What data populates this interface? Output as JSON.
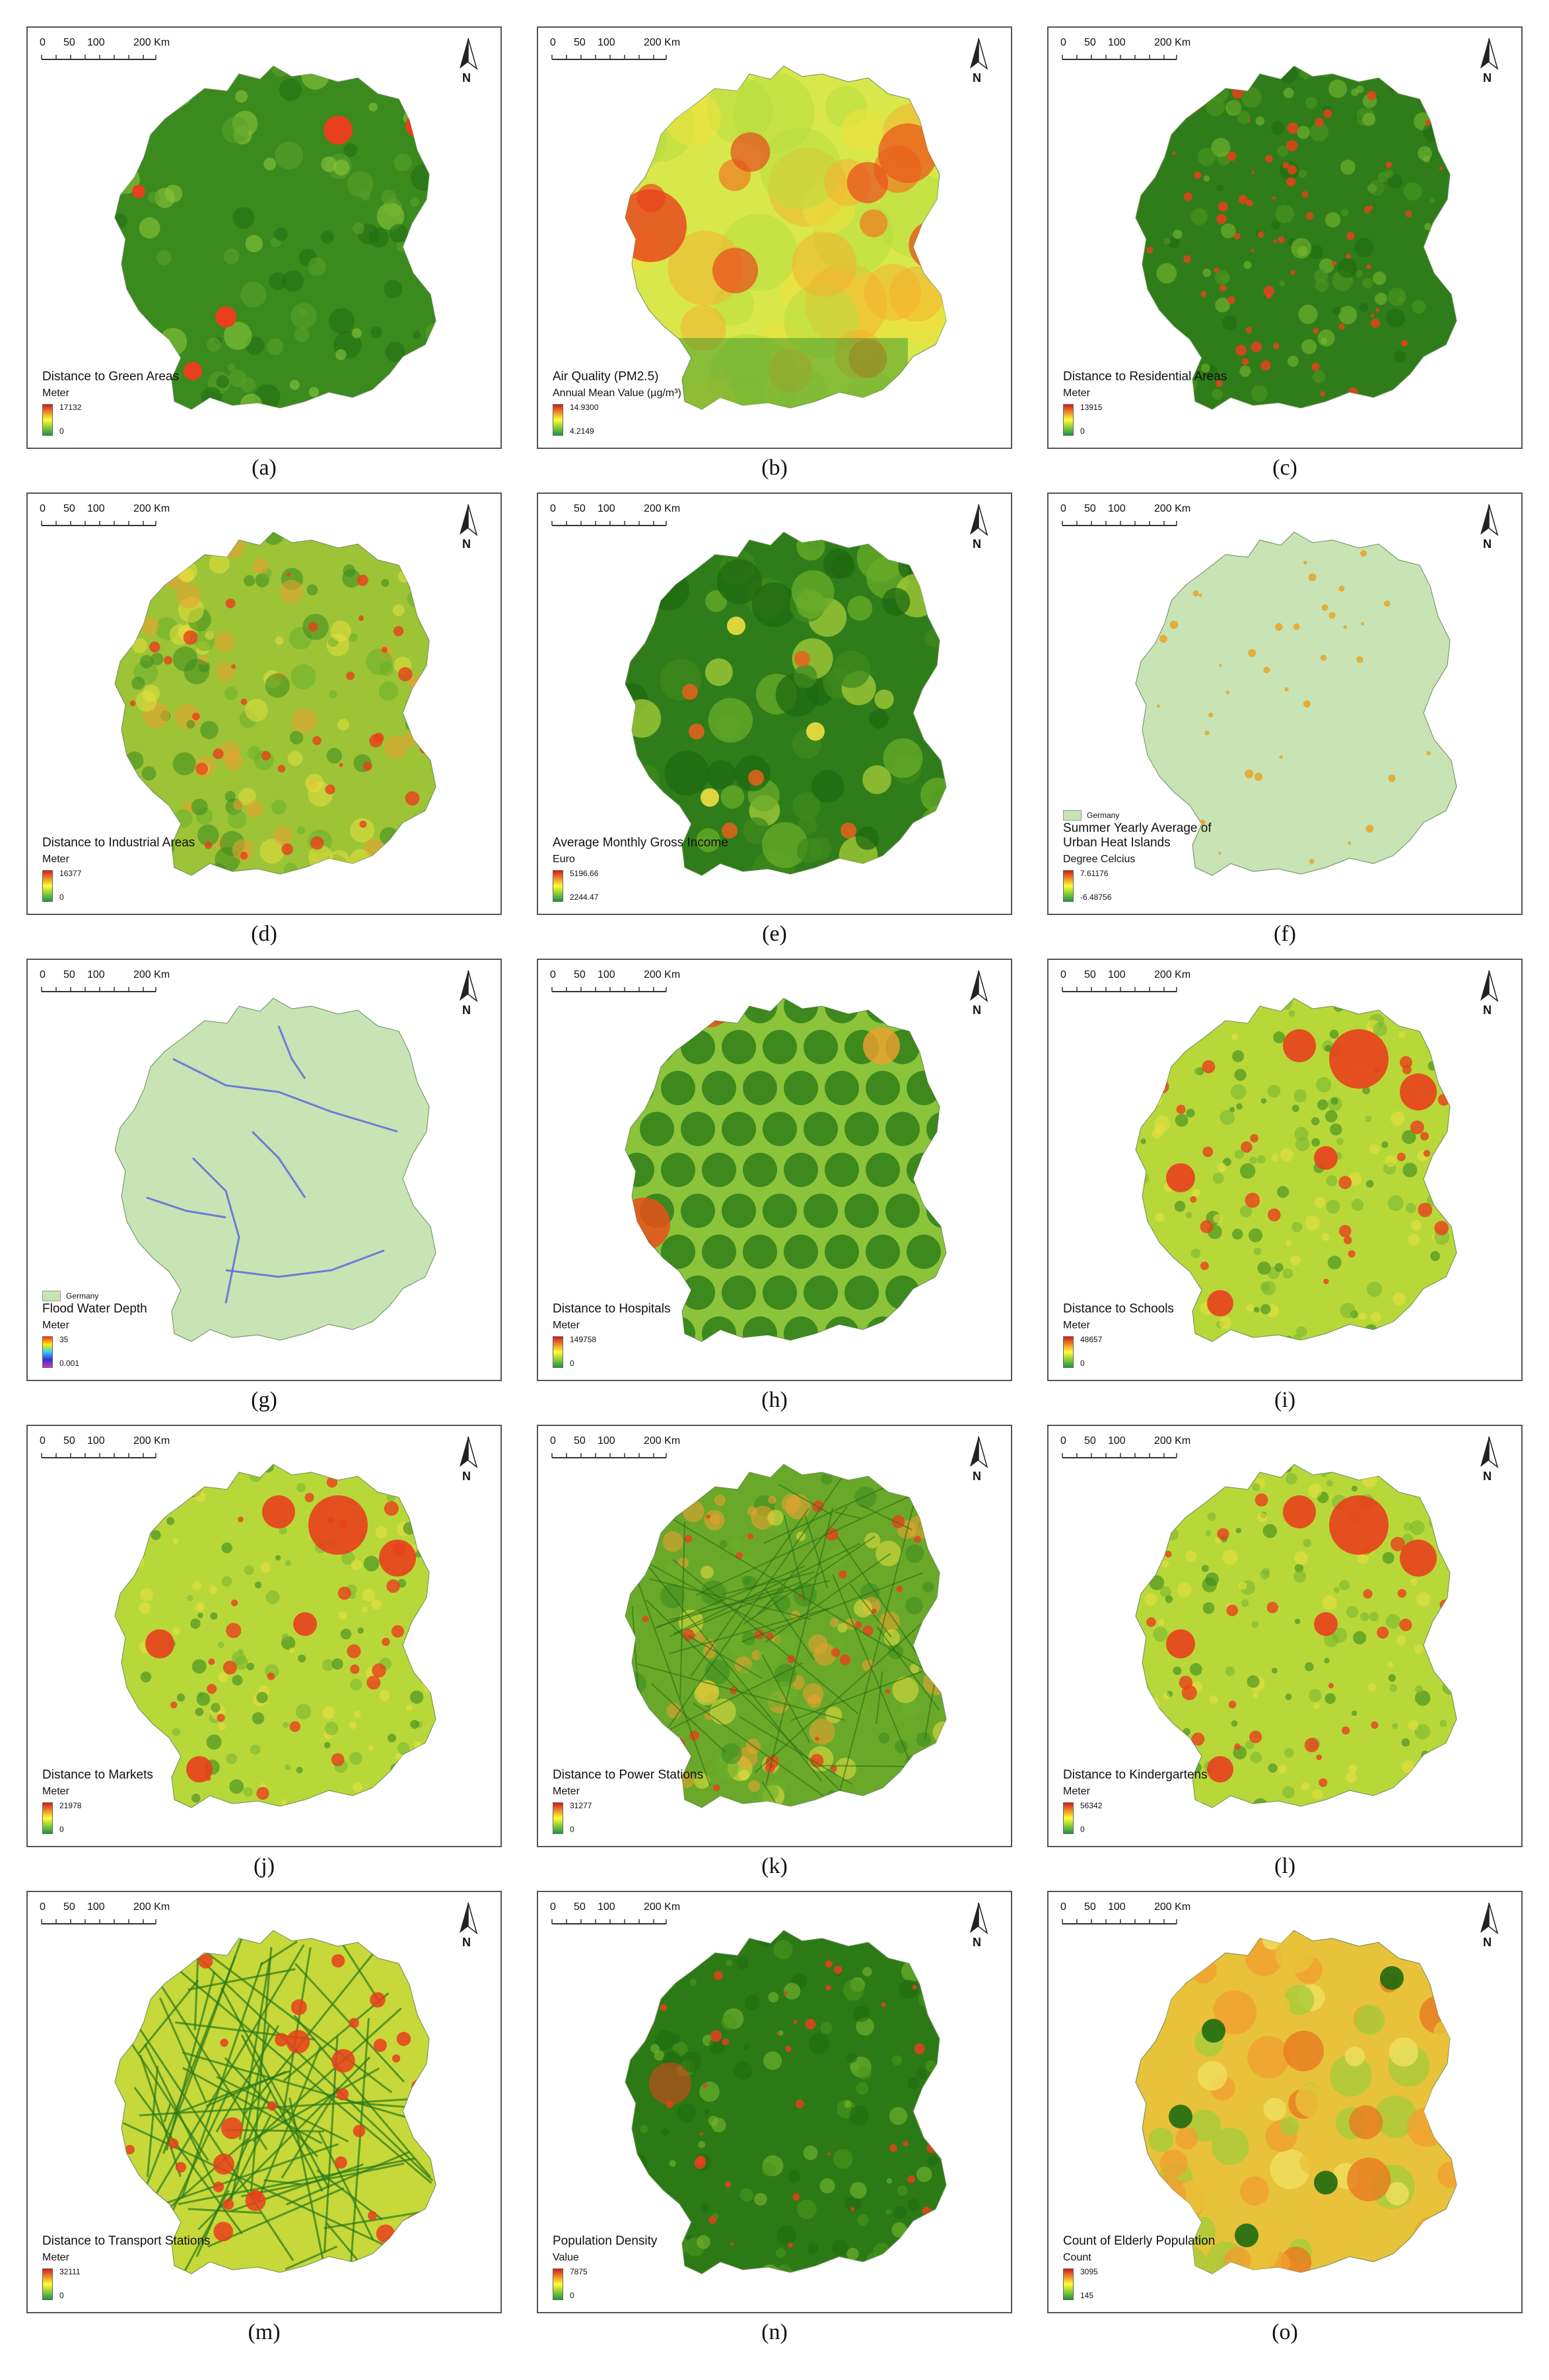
{
  "scale_bar": {
    "ticks": [
      "0",
      "50",
      "100",
      "200 Km"
    ]
  },
  "north_label": "N",
  "base_legend_label": "Germany",
  "panels": [
    {
      "id": "a",
      "caption": "(a)",
      "style": "green",
      "title": "Distance to Green Areas",
      "unit": "Meter",
      "max": "17132",
      "min": "0",
      "ramp": [
        "#d7191c",
        "#ffff33",
        "#1a9641"
      ]
    },
    {
      "id": "b",
      "caption": "(b)",
      "style": "air",
      "title": "Air Quality (PM2.5)",
      "subtitle": "Annual Mean Value (µg/m³)",
      "unit": "",
      "max": "14.9300",
      "min": "4.2149",
      "ramp": [
        "#d7191c",
        "#ffff33",
        "#1a9641"
      ]
    },
    {
      "id": "c",
      "caption": "(c)",
      "style": "green-speck",
      "title": "Distance to Residential Areas",
      "unit": "Meter",
      "max": "13915",
      "min": "0",
      "ramp": [
        "#d7191c",
        "#ffff33",
        "#1a9641"
      ]
    },
    {
      "id": "d",
      "caption": "(d)",
      "style": "mixed",
      "title": "Distance to Industrial Areas",
      "unit": "Meter",
      "max": "16377",
      "min": "0",
      "ramp": [
        "#d7191c",
        "#ffff33",
        "#1a9641"
      ]
    },
    {
      "id": "e",
      "caption": "(e)",
      "style": "district-green",
      "title": "Average Monthly Gross Income",
      "unit": "Euro",
      "max": "5196.66",
      "min": "2244.47",
      "ramp": [
        "#d7191c",
        "#ffff33",
        "#1a9641"
      ]
    },
    {
      "id": "f",
      "caption": "(f)",
      "style": "pale",
      "title": "Summer Yearly Average of Urban Heat Islands",
      "unit": "Degree Celcius",
      "max": "7.61176",
      "min": "-6.48756",
      "ramp": [
        "#d7191c",
        "#ffff33",
        "#1a9641"
      ],
      "base_legend": true
    },
    {
      "id": "g",
      "caption": "(g)",
      "style": "flood",
      "title": "Flood Water Depth",
      "unit": "Meter",
      "max": "35",
      "min": "0.001",
      "ramp": [
        "#ff3300",
        "#ffee00",
        "#33ccff",
        "#3333cc",
        "#cc33cc"
      ],
      "base_legend": true
    },
    {
      "id": "h",
      "caption": "(h)",
      "style": "hospital",
      "title": "Distance to Hospitals",
      "unit": "Meter",
      "max": "149758",
      "min": "0",
      "ramp": [
        "#d7191c",
        "#ffff33",
        "#1a9641"
      ]
    },
    {
      "id": "i",
      "caption": "(i)",
      "style": "red-cluster",
      "title": "Distance to Schools",
      "unit": "Meter",
      "max": "48657",
      "min": "0",
      "ramp": [
        "#d7191c",
        "#ffff33",
        "#1a9641"
      ]
    },
    {
      "id": "j",
      "caption": "(j)",
      "style": "red-cluster",
      "title": "Distance to Markets",
      "unit": "Meter",
      "max": "21978",
      "min": "0",
      "ramp": [
        "#d7191c",
        "#ffff33",
        "#1a9641"
      ]
    },
    {
      "id": "k",
      "caption": "(k)",
      "style": "mixed-dense",
      "title": "Distance to Power Stations",
      "unit": "Meter",
      "max": "31277",
      "min": "0",
      "ramp": [
        "#d7191c",
        "#ffff33",
        "#1a9641"
      ]
    },
    {
      "id": "l",
      "caption": "(l)",
      "style": "red-cluster",
      "title": "Distance to Kindergartens",
      "unit": "Meter",
      "max": "56342",
      "min": "0",
      "ramp": [
        "#d7191c",
        "#ffff33",
        "#1a9641"
      ]
    },
    {
      "id": "m",
      "caption": "(m)",
      "style": "transport",
      "title": "Distance to Transport Stations",
      "unit": "Meter",
      "max": "32111",
      "min": "0",
      "ramp": [
        "#d7191c",
        "#ffff33",
        "#1a9641"
      ]
    },
    {
      "id": "n",
      "caption": "(n)",
      "style": "popdens",
      "title": "Population Density",
      "unit": "Value",
      "max": "7875",
      "min": "0",
      "ramp": [
        "#d7191c",
        "#ffff33",
        "#1a9641"
      ]
    },
    {
      "id": "o",
      "caption": "(o)",
      "style": "elderly",
      "title": "Count of Elderly Population",
      "unit": "Count",
      "max": "3095",
      "min": "145",
      "ramp": [
        "#d7191c",
        "#ffff33",
        "#1a9641"
      ]
    }
  ]
}
